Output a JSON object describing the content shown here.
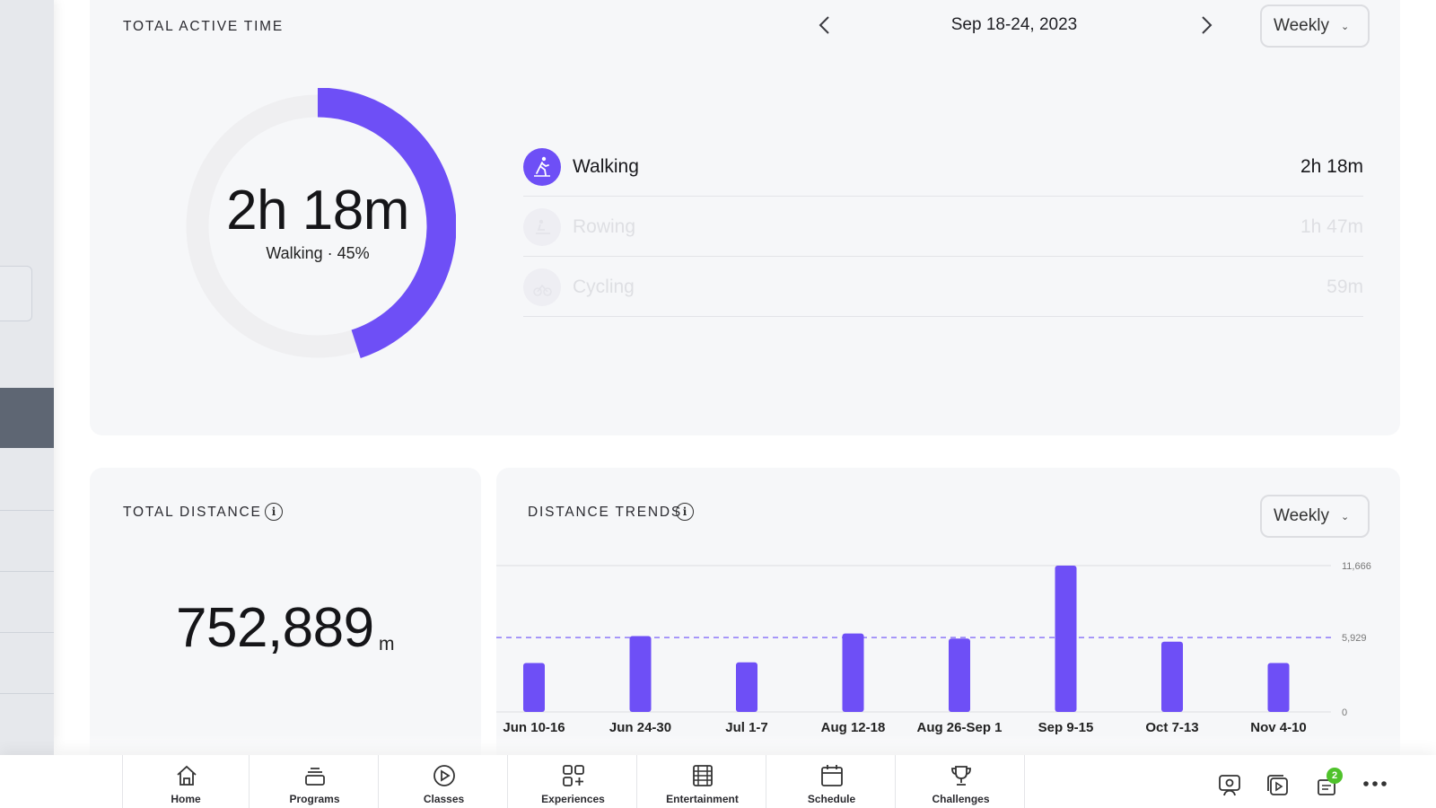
{
  "colors": {
    "accent": "#6E4FF6",
    "ring_track": "#EFEFF1",
    "badge": "#4FC22B",
    "dashed_avg": "#8E79F8"
  },
  "active_time": {
    "title": "TOTAL ACTIVE TIME",
    "date_range": "Sep 18-24, 2023",
    "period_select": "Weekly",
    "total": "2h 18m",
    "subtitle": "Walking · 45%",
    "highlight_fraction": 0.45,
    "activities": [
      {
        "name": "Walking",
        "value": "2h 18m",
        "icon": "walking-icon",
        "dimmed": false
      },
      {
        "name": "Rowing",
        "value": "1h 47m",
        "icon": "rowing-icon",
        "dimmed": true
      },
      {
        "name": "Cycling",
        "value": "59m",
        "icon": "cycling-icon",
        "dimmed": true
      }
    ]
  },
  "distance": {
    "title": "TOTAL DISTANCE",
    "value": "752,889",
    "unit": "m"
  },
  "trends": {
    "title": "DISTANCE TRENDS",
    "period_select": "Weekly"
  },
  "chart_data": {
    "type": "bar",
    "title": "DISTANCE TRENDS",
    "categories": [
      "Jun 10-16",
      "Jun 24-30",
      "Jul 1-7",
      "Aug 12-18",
      "Aug 26-Sep 1",
      "Sep 9-15",
      "Oct 7-13",
      "Nov 4-10"
    ],
    "values": [
      3900,
      6050,
      3950,
      6250,
      5850,
      11666,
      5600,
      3900
    ],
    "y_ticks": [
      "11,666",
      "5,929",
      "0"
    ],
    "y_tick_values": [
      11666,
      5929,
      0
    ],
    "average": 5929,
    "ylim": [
      0,
      11666
    ],
    "grid": true
  },
  "bottom_nav": [
    {
      "label": "Home",
      "icon": "home-icon"
    },
    {
      "label": "Programs",
      "icon": "programs-icon"
    },
    {
      "label": "Classes",
      "icon": "classes-play-icon"
    },
    {
      "label": "Experiences",
      "icon": "experiences-grid-icon"
    },
    {
      "label": "Entertainment",
      "icon": "entertainment-film-icon"
    },
    {
      "label": "Schedule",
      "icon": "schedule-calendar-icon"
    },
    {
      "label": "Challenges",
      "icon": "challenges-trophy-icon"
    }
  ],
  "utilities": {
    "notification_count": "2"
  }
}
